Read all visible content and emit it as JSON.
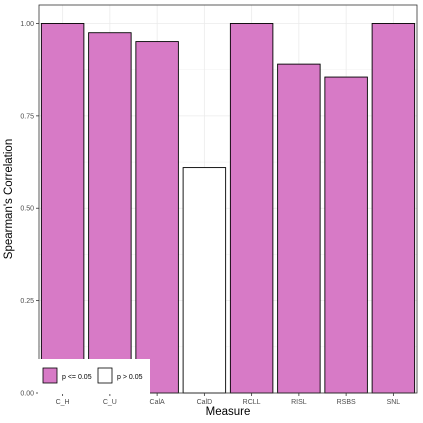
{
  "chart_data": {
    "type": "bar",
    "title": "",
    "xlabel": "Measure",
    "ylabel": "Spearman's Correlation",
    "categories": [
      "C_H",
      "C_U",
      "CalA",
      "CalD",
      "RCLL",
      "RISL",
      "RSBS",
      "SNL"
    ],
    "values": [
      1.0,
      0.975,
      0.951,
      0.61,
      1.0,
      0.89,
      0.855,
      1.0
    ],
    "significance": [
      "p <= 0.05",
      "p <= 0.05",
      "p <= 0.05",
      "p > 0.05",
      "p <= 0.05",
      "p <= 0.05",
      "p <= 0.05",
      "p <= 0.05"
    ],
    "ylim": [
      0,
      1.05
    ],
    "yticks": [
      0.0,
      0.25,
      0.5,
      0.75,
      1.0
    ],
    "ytick_labels": [
      "0.00",
      "0.25",
      "0.50",
      "0.75",
      "1.00"
    ],
    "grid": true,
    "legend_position": "bottom-left",
    "legend": [
      {
        "label": "p <= 0.05",
        "color": "#d77ac6"
      },
      {
        "label": "p > 0.05",
        "color": "#ffffff"
      }
    ],
    "colors": {
      "significant": "#d77ac6",
      "not_significant": "#ffffff",
      "bar_outline": "#000000",
      "grid": "#ebebeb",
      "panel_border": "#333333"
    }
  }
}
